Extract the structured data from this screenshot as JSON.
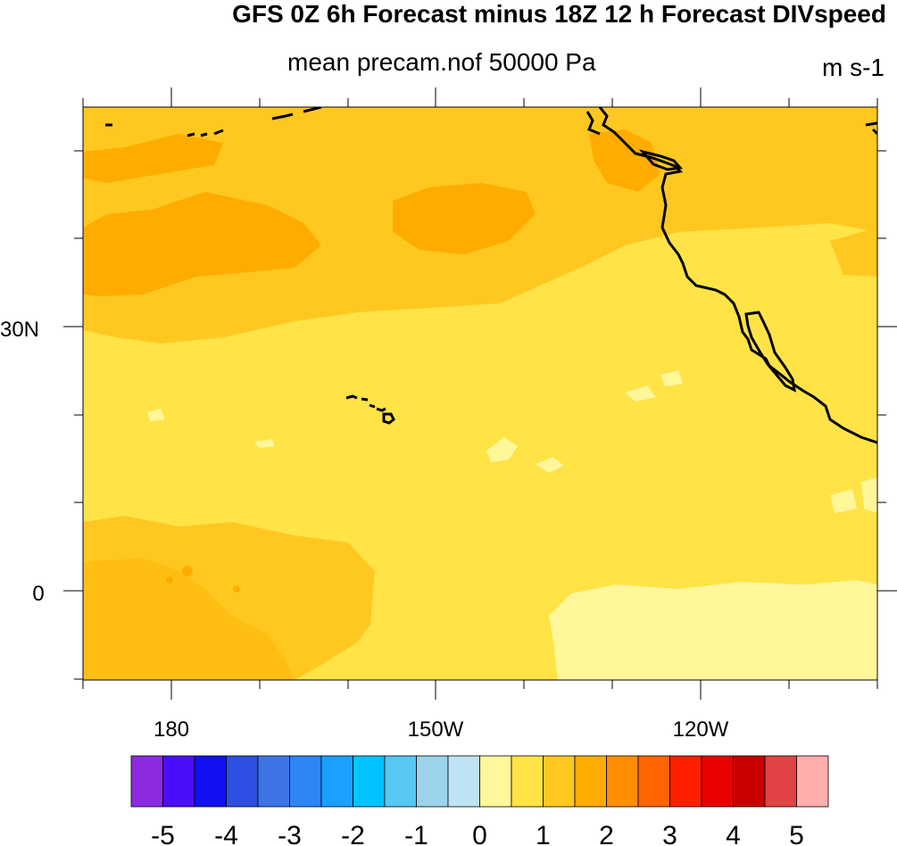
{
  "title": "GFS 0Z 6h Forecast minus 18Z 12 h Forecast DIVspeed",
  "subtitle": "mean precam.nof 50000 Pa",
  "units": "m s-1",
  "axes": {
    "y_ticks": [
      {
        "label": "30N",
        "lat": 30
      },
      {
        "label": "0",
        "lat": 0
      }
    ],
    "x_ticks": [
      {
        "label": "180",
        "lon": 180
      },
      {
        "label": "150W",
        "lon": -150
      },
      {
        "label": "120W",
        "lon": -120
      }
    ]
  },
  "colorbar": {
    "labels": [
      "-5",
      "-4",
      "-3",
      "-2",
      "-1",
      "0",
      "1",
      "2",
      "3",
      "4",
      "5"
    ],
    "colors": [
      "#8a2be2",
      "#4b0efc",
      "#1010f2",
      "#2e4fe0",
      "#3e74e6",
      "#2c86f6",
      "#1aa0ff",
      "#00c3ff",
      "#56c8f2",
      "#9cd3ea",
      "#bde3f4",
      "#fff79a",
      "#ffe347",
      "#ffc820",
      "#ffac00",
      "#ff8e00",
      "#ff6400",
      "#ff2000",
      "#eb0000",
      "#c80000",
      "#e04444",
      "#ffadad"
    ]
  },
  "map": {
    "field_colors": {
      "light": "#fff79a",
      "low": "#ffe347",
      "mid": "#ffc820",
      "high": "#ffac00"
    }
  }
}
